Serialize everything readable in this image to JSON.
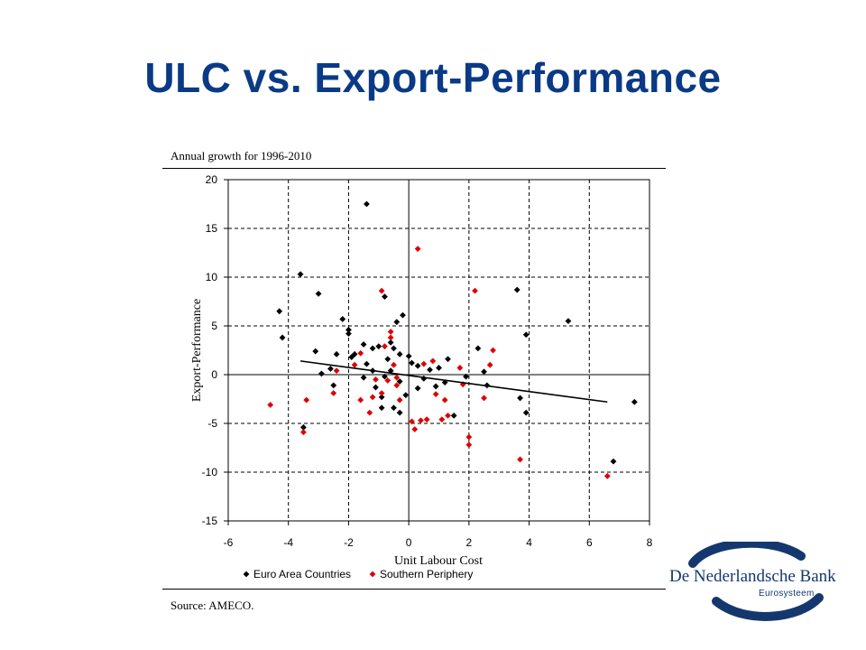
{
  "slide": {
    "title": "ULC vs. Export-Performance",
    "subtitle": "Annual growth for 1996-2010",
    "source": "Source: AMECO."
  },
  "logo": {
    "name": "De Nederlandsche Bank",
    "sub": "Eurosysteem",
    "color": "#14386e"
  },
  "chart_data": {
    "type": "scatter",
    "title": "",
    "xlabel": "Unit Labour Cost",
    "ylabel": "Export-Performance",
    "xlim": [
      -6,
      8
    ],
    "ylim": [
      -15,
      20
    ],
    "xticks": [
      -6,
      -4,
      -2,
      0,
      2,
      4,
      6,
      8
    ],
    "yticks": [
      20,
      15,
      10,
      5,
      0,
      -5,
      -10,
      -15
    ],
    "grid": "dashed",
    "legend_position": "bottom",
    "series": [
      {
        "name": "Euro Area Countries",
        "color": "#000000",
        "points": [
          [
            -1.4,
            17.5
          ],
          [
            -3.6,
            10.3
          ],
          [
            -3.0,
            8.3
          ],
          [
            -4.3,
            6.5
          ],
          [
            -4.2,
            3.8
          ],
          [
            -3.5,
            -5.4
          ],
          [
            -2.2,
            5.7
          ],
          [
            -2.0,
            4.6
          ],
          [
            -2.0,
            4.2
          ],
          [
            -2.4,
            2.1
          ],
          [
            -3.1,
            2.4
          ],
          [
            -2.6,
            0.6
          ],
          [
            -2.9,
            0.1
          ],
          [
            -2.5,
            -1.1
          ],
          [
            -1.8,
            2.1
          ],
          [
            -1.5,
            3.1
          ],
          [
            -1.2,
            2.7
          ],
          [
            -1.0,
            2.9
          ],
          [
            -1.4,
            1.1
          ],
          [
            -1.2,
            0.4
          ],
          [
            -1.1,
            -1.3
          ],
          [
            -0.9,
            -2.3
          ],
          [
            -0.8,
            -0.2
          ],
          [
            -0.7,
            1.6
          ],
          [
            -0.6,
            3.3
          ],
          [
            -0.4,
            5.4
          ],
          [
            -0.2,
            6.1
          ],
          [
            -0.5,
            2.7
          ],
          [
            -0.3,
            2.1
          ],
          [
            -0.3,
            -0.7
          ],
          [
            -0.5,
            -3.4
          ],
          [
            -0.3,
            -3.9
          ],
          [
            -0.1,
            -2.1
          ],
          [
            0.1,
            1.2
          ],
          [
            0.3,
            0.9
          ],
          [
            0.5,
            -0.4
          ],
          [
            0.7,
            0.5
          ],
          [
            0.9,
            -1.2
          ],
          [
            1.0,
            0.7
          ],
          [
            1.3,
            1.6
          ],
          [
            1.5,
            -4.2
          ],
          [
            1.9,
            -0.2
          ],
          [
            2.3,
            2.7
          ],
          [
            2.5,
            0.3
          ],
          [
            2.6,
            -1.1
          ],
          [
            3.6,
            8.7
          ],
          [
            3.9,
            4.1
          ],
          [
            3.7,
            -2.4
          ],
          [
            3.9,
            -3.9
          ],
          [
            5.3,
            5.5
          ],
          [
            7.5,
            -2.8
          ],
          [
            6.8,
            -8.9
          ],
          [
            -0.8,
            8.0
          ],
          [
            0.3,
            -1.4
          ],
          [
            -1.9,
            1.8
          ],
          [
            -1.5,
            -0.3
          ],
          [
            -0.9,
            -3.4
          ],
          [
            1.2,
            -0.8
          ],
          [
            -0.6,
            0.4
          ],
          [
            0.0,
            1.9
          ]
        ]
      },
      {
        "name": "Southern Periphery",
        "color": "#e00000",
        "points": [
          [
            -4.6,
            -3.1
          ],
          [
            -3.5,
            -5.9
          ],
          [
            -3.4,
            -2.6
          ],
          [
            -2.5,
            -1.9
          ],
          [
            -2.4,
            0.4
          ],
          [
            -1.8,
            1.0
          ],
          [
            -1.6,
            2.2
          ],
          [
            -1.3,
            -3.9
          ],
          [
            -1.1,
            -0.5
          ],
          [
            -0.9,
            8.6
          ],
          [
            -0.8,
            2.9
          ],
          [
            -0.6,
            4.4
          ],
          [
            -0.6,
            3.8
          ],
          [
            -0.5,
            1.0
          ],
          [
            -0.4,
            -1.1
          ],
          [
            -0.3,
            -2.6
          ],
          [
            0.1,
            -4.8
          ],
          [
            0.2,
            -5.6
          ],
          [
            0.3,
            12.9
          ],
          [
            0.4,
            -4.7
          ],
          [
            0.6,
            -4.6
          ],
          [
            0.8,
            1.4
          ],
          [
            1.1,
            -4.6
          ],
          [
            1.2,
            -2.6
          ],
          [
            1.3,
            -4.2
          ],
          [
            1.7,
            0.7
          ],
          [
            2.0,
            -6.4
          ],
          [
            2.0,
            -7.2
          ],
          [
            2.2,
            8.6
          ],
          [
            2.5,
            -2.4
          ],
          [
            2.7,
            1.0
          ],
          [
            2.8,
            2.5
          ],
          [
            3.7,
            -8.7
          ],
          [
            6.6,
            -10.4
          ],
          [
            -0.9,
            -1.9
          ],
          [
            -1.2,
            -2.3
          ],
          [
            0.5,
            1.1
          ],
          [
            1.8,
            -1.0
          ],
          [
            -0.4,
            -0.3
          ],
          [
            0.9,
            -2.0
          ],
          [
            -0.7,
            -0.6
          ],
          [
            -1.6,
            -2.6
          ]
        ]
      }
    ],
    "trendline": {
      "type": "linear",
      "color": "#000000",
      "from": [
        -3.6,
        1.4
      ],
      "to": [
        6.6,
        -2.8
      ]
    }
  }
}
